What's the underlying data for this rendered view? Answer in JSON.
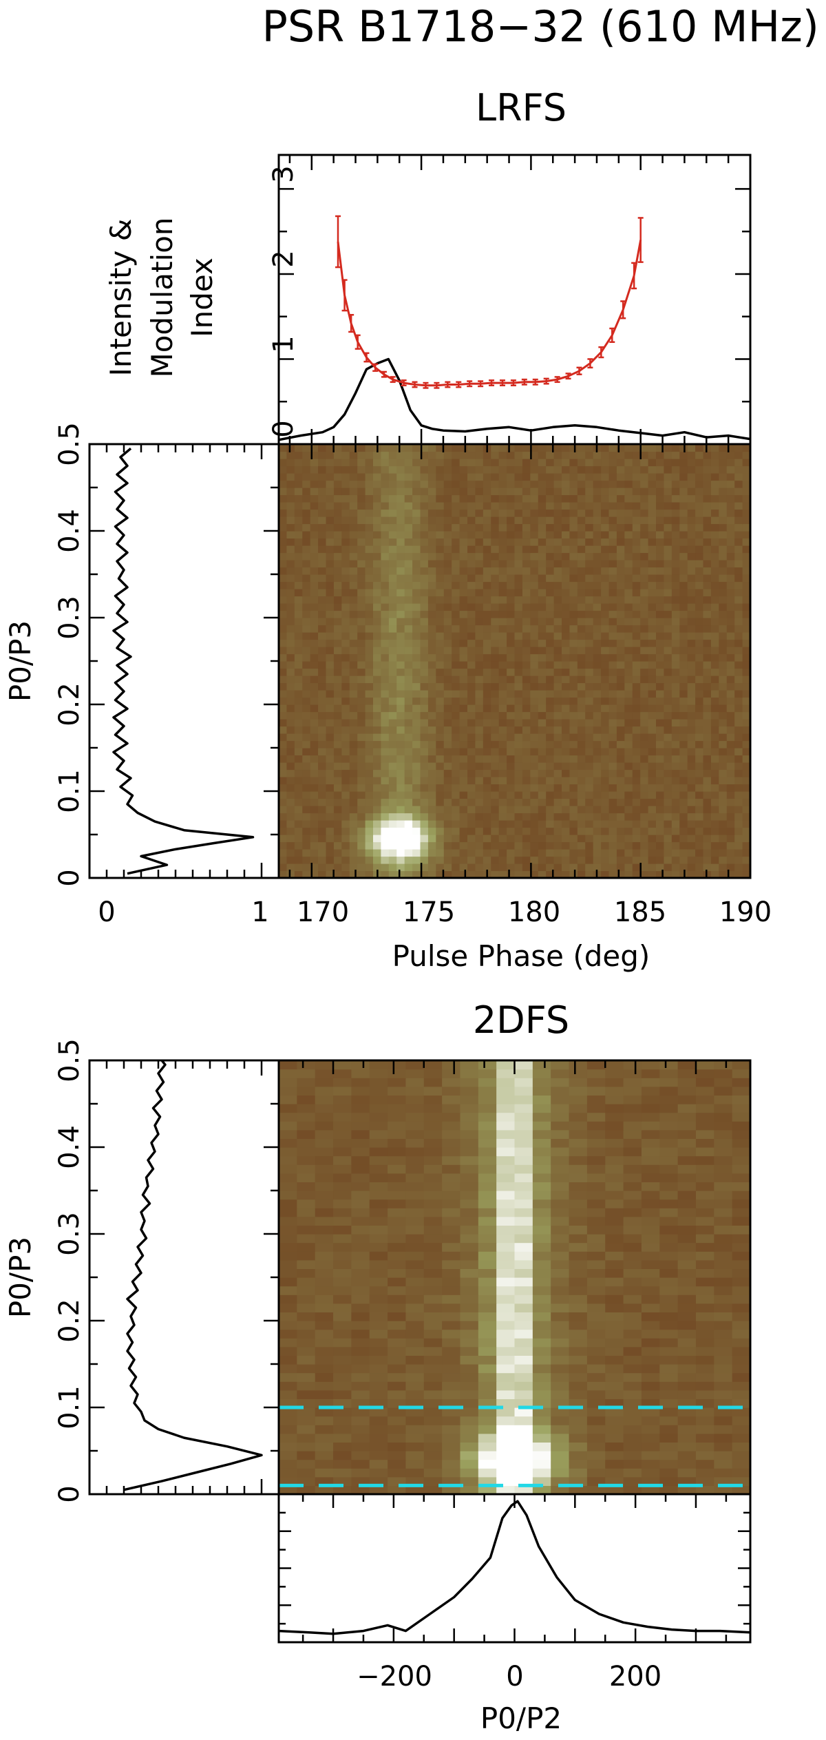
{
  "figure": {
    "title": "PSR B1718−32 (610 MHz)",
    "lrfs_title": "LRFS",
    "twodfs_title": "2DFS",
    "colors": {
      "map_low": "#6b3a1a",
      "map_high": "#ffffff",
      "modulation": "#d42a1f",
      "guide_lines": "#22d8e6"
    }
  },
  "chart_data": [
    {
      "name": "profile-and-modulation",
      "type": "line",
      "ylabel_lines": [
        "Intensity &",
        "Modulation",
        "Index"
      ],
      "xlim": [
        168.5,
        190
      ],
      "ylim": [
        0,
        3.4
      ],
      "yticks": [
        0,
        1,
        2,
        3
      ],
      "ytick_labels": [
        "0",
        "1",
        "2",
        "3"
      ],
      "series": [
        {
          "x": [
            168.5,
            169.5,
            170.5,
            171.0,
            171.5,
            172.0,
            172.5,
            173.0,
            173.5,
            174.0,
            174.5,
            175.0,
            175.5,
            176.0,
            177.0,
            178.0,
            179.0,
            180.0,
            181.0,
            182.0,
            183.0,
            184.0,
            185.0,
            186.0,
            187.0,
            188.0,
            189.0,
            190.0
          ],
          "y": [
            0.05,
            0.1,
            0.14,
            0.2,
            0.35,
            0.6,
            0.88,
            0.95,
            1.0,
            0.75,
            0.4,
            0.22,
            0.18,
            0.16,
            0.15,
            0.18,
            0.2,
            0.16,
            0.2,
            0.22,
            0.2,
            0.16,
            0.13,
            0.1,
            0.14,
            0.08,
            0.1,
            0.06
          ]
        },
        {
          "x": [
            171.2,
            171.5,
            171.8,
            172.1,
            172.5,
            172.9,
            173.3,
            173.7,
            174.2,
            174.7,
            175.2,
            175.7,
            176.2,
            176.7,
            177.2,
            177.7,
            178.2,
            178.7,
            179.2,
            179.7,
            180.2,
            180.7,
            181.2,
            181.7,
            182.2,
            182.7,
            183.2,
            183.7,
            184.2,
            184.7,
            185.0
          ],
          "y": [
            2.38,
            1.75,
            1.42,
            1.2,
            1.02,
            0.9,
            0.82,
            0.76,
            0.72,
            0.7,
            0.69,
            0.69,
            0.7,
            0.7,
            0.71,
            0.71,
            0.72,
            0.72,
            0.72,
            0.73,
            0.73,
            0.74,
            0.76,
            0.8,
            0.86,
            0.95,
            1.08,
            1.28,
            1.58,
            1.98,
            2.4
          ],
          "errors": [
            0.3,
            0.18,
            0.1,
            0.08,
            0.05,
            0.04,
            0.03,
            0.03,
            0.03,
            0.03,
            0.03,
            0.03,
            0.03,
            0.03,
            0.03,
            0.03,
            0.03,
            0.03,
            0.03,
            0.03,
            0.03,
            0.03,
            0.03,
            0.03,
            0.04,
            0.05,
            0.06,
            0.08,
            0.1,
            0.15,
            0.26
          ]
        }
      ]
    },
    {
      "name": "lrfs-side-spectrum",
      "type": "line",
      "ylabel": "P0/P3",
      "xticks": [
        0,
        1
      ],
      "xtick_labels": [
        "0",
        "1"
      ],
      "xlim": [
        0,
        1.1
      ],
      "ylim": [
        0,
        0.5
      ],
      "yticks": [
        0,
        0.1,
        0.2,
        0.3,
        0.4,
        0.5
      ],
      "ytick_labels": [
        "0",
        "0.1",
        "0.2",
        "0.3",
        "0.4",
        "0.5"
      ],
      "x": [
        0.22,
        0.45,
        0.3,
        0.5,
        0.72,
        0.95,
        0.55,
        0.38,
        0.28,
        0.22,
        0.25,
        0.18,
        0.24,
        0.16,
        0.2,
        0.14,
        0.22,
        0.15,
        0.2,
        0.14,
        0.22,
        0.15,
        0.2,
        0.15,
        0.22,
        0.16,
        0.24,
        0.16,
        0.2,
        0.14,
        0.22,
        0.16,
        0.2,
        0.15,
        0.22,
        0.17,
        0.2,
        0.16,
        0.22,
        0.16,
        0.2,
        0.15,
        0.22,
        0.16,
        0.2,
        0.15,
        0.22,
        0.16,
        0.22,
        0.18,
        0.24
      ],
      "y": [
        0.005,
        0.015,
        0.025,
        0.033,
        0.04,
        0.047,
        0.055,
        0.065,
        0.075,
        0.085,
        0.095,
        0.105,
        0.115,
        0.125,
        0.135,
        0.145,
        0.155,
        0.165,
        0.175,
        0.185,
        0.195,
        0.205,
        0.215,
        0.225,
        0.235,
        0.245,
        0.255,
        0.265,
        0.275,
        0.285,
        0.295,
        0.305,
        0.315,
        0.325,
        0.335,
        0.345,
        0.355,
        0.365,
        0.375,
        0.385,
        0.395,
        0.405,
        0.415,
        0.425,
        0.435,
        0.445,
        0.455,
        0.465,
        0.475,
        0.485,
        0.495
      ]
    },
    {
      "name": "lrfs-map",
      "type": "heatmap",
      "xlabel": "Pulse Phase (deg)",
      "xlim": [
        168.5,
        190
      ],
      "ylim": [
        0,
        0.5
      ],
      "xticks": [
        170,
        175,
        180,
        185,
        190
      ],
      "xtick_labels": [
        "170",
        "175",
        "180",
        "185",
        "190"
      ],
      "features": [
        {
          "x": 174,
          "y": 0.045,
          "sx": 1.0,
          "sy": 0.018,
          "amp": 1.0
        },
        {
          "x": 174,
          "y": 0.25,
          "sx": 0.9,
          "sy": 0.3,
          "amp": 0.22
        }
      ]
    },
    {
      "name": "2dfs-side-spectrum",
      "type": "line",
      "ylabel": "P0/P3",
      "xlim": [
        0,
        1.1
      ],
      "ylim": [
        0,
        0.5
      ],
      "yticks": [
        0,
        0.1,
        0.2,
        0.3,
        0.4,
        0.5
      ],
      "ytick_labels": [
        "0",
        "0.1",
        "0.2",
        "0.3",
        "0.4",
        "0.5"
      ],
      "x": [
        0.2,
        0.42,
        0.62,
        0.82,
        1.0,
        0.8,
        0.55,
        0.4,
        0.32,
        0.3,
        0.26,
        0.28,
        0.24,
        0.27,
        0.23,
        0.26,
        0.22,
        0.25,
        0.22,
        0.26,
        0.24,
        0.27,
        0.22,
        0.28,
        0.25,
        0.3,
        0.27,
        0.31,
        0.28,
        0.33,
        0.3,
        0.32,
        0.3,
        0.35,
        0.31,
        0.34,
        0.33,
        0.37,
        0.34,
        0.38,
        0.36,
        0.4,
        0.38,
        0.41,
        0.37,
        0.42,
        0.39,
        0.43,
        0.4,
        0.44,
        0.42
      ],
      "y": [
        0.005,
        0.015,
        0.025,
        0.035,
        0.045,
        0.055,
        0.065,
        0.075,
        0.085,
        0.095,
        0.105,
        0.115,
        0.125,
        0.135,
        0.145,
        0.155,
        0.165,
        0.175,
        0.185,
        0.195,
        0.205,
        0.215,
        0.225,
        0.235,
        0.245,
        0.255,
        0.265,
        0.275,
        0.285,
        0.295,
        0.305,
        0.315,
        0.325,
        0.335,
        0.345,
        0.355,
        0.365,
        0.375,
        0.385,
        0.395,
        0.405,
        0.415,
        0.425,
        0.435,
        0.445,
        0.455,
        0.465,
        0.475,
        0.485,
        0.495,
        0.5
      ]
    },
    {
      "name": "2dfs-map",
      "type": "heatmap",
      "xlim": [
        -390,
        390
      ],
      "ylim": [
        0,
        0.5
      ],
      "guides_y": [
        0.01,
        0.1
      ],
      "features": [
        {
          "x": 0,
          "y": 0.04,
          "sx": 48,
          "sy": 0.02,
          "amp": 1.0
        },
        {
          "x": 0,
          "y": 0.25,
          "sx": 22,
          "sy": 0.5,
          "amp": 0.6
        },
        {
          "x": 0,
          "y": 0.25,
          "sx": 60,
          "sy": 0.5,
          "amp": 0.22
        }
      ]
    },
    {
      "name": "2dfs-bottom-spectrum",
      "type": "line",
      "xlabel": "P0/P2",
      "xlim": [
        -390,
        390
      ],
      "ylim": [
        0,
        1.05
      ],
      "xticks": [
        -200,
        0,
        200
      ],
      "xtick_labels": [
        "−200",
        "0",
        "200"
      ],
      "x": [
        -390,
        -340,
        -300,
        -250,
        -210,
        -180,
        -140,
        -100,
        -70,
        -40,
        -20,
        -5,
        5,
        20,
        40,
        70,
        100,
        140,
        180,
        220,
        260,
        300,
        340,
        390
      ],
      "y": [
        0.08,
        0.07,
        0.06,
        0.08,
        0.12,
        0.08,
        0.2,
        0.32,
        0.45,
        0.6,
        0.88,
        0.97,
        1.0,
        0.9,
        0.68,
        0.46,
        0.3,
        0.2,
        0.14,
        0.11,
        0.09,
        0.08,
        0.08,
        0.07
      ]
    }
  ]
}
